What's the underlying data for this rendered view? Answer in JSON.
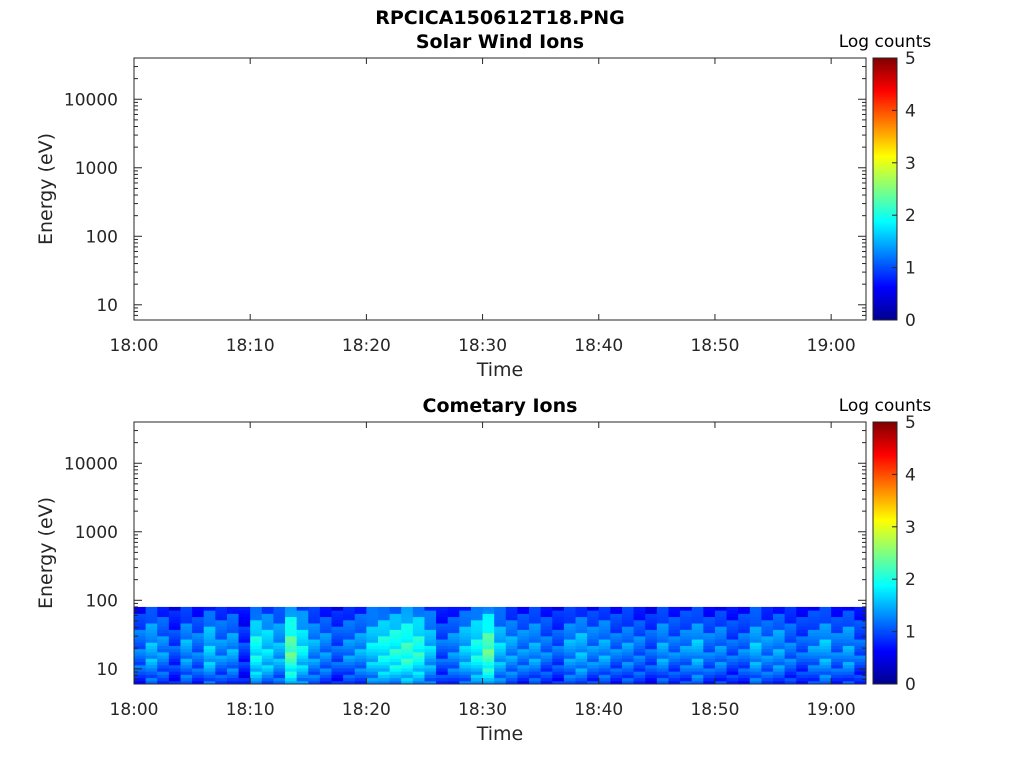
{
  "figure_title": "RPCICA150612T18.PNG",
  "colormap": [
    "#00008f",
    "#0000ff",
    "#0080ff",
    "#00ffff",
    "#80ff80",
    "#ffff00",
    "#ff8000",
    "#ff0000",
    "#800000"
  ],
  "chart_data": [
    {
      "type": "heatmap",
      "title": "Solar Wind Ions",
      "xlabel": "Time",
      "ylabel": "Energy (eV)",
      "x_ticks": [
        "18:00",
        "18:10",
        "18:20",
        "18:30",
        "18:40",
        "18:50",
        "19:00"
      ],
      "y_ticks": [
        "10",
        "100",
        "1000",
        "10000"
      ],
      "y_scale": "log",
      "xlim_minutes": [
        0,
        63
      ],
      "ylim_eV": [
        6,
        40000
      ],
      "colorbar": {
        "label": "Log counts",
        "ticks": [
          "0",
          "1",
          "2",
          "3",
          "4",
          "5"
        ],
        "range": [
          0,
          5
        ]
      },
      "grid": false,
      "intensity_profile": []
    },
    {
      "type": "heatmap",
      "title": "Cometary Ions",
      "xlabel": "Time",
      "ylabel": "Energy (eV)",
      "x_ticks": [
        "18:00",
        "18:10",
        "18:20",
        "18:30",
        "18:40",
        "18:50",
        "19:00"
      ],
      "y_ticks": [
        "10",
        "100",
        "1000",
        "10000"
      ],
      "y_scale": "log",
      "xlim_minutes": [
        0,
        63
      ],
      "ylim_eV": [
        6,
        40000
      ],
      "colorbar": {
        "label": "Log counts",
        "ticks": [
          "0",
          "1",
          "2",
          "3",
          "4",
          "5"
        ],
        "range": [
          0,
          5
        ]
      },
      "grid": false,
      "data_energy_range_eV": [
        6,
        80
      ],
      "intensity_profile": [
        {
          "t": 0,
          "v": 1.2
        },
        {
          "t": 1,
          "v": 1.5
        },
        {
          "t": 2,
          "v": 1.3
        },
        {
          "t": 3,
          "v": 1.0
        },
        {
          "t": 4,
          "v": 1.4
        },
        {
          "t": 5,
          "v": 1.2
        },
        {
          "t": 6,
          "v": 1.6
        },
        {
          "t": 7,
          "v": 1.3
        },
        {
          "t": 8,
          "v": 1.4
        },
        {
          "t": 9,
          "v": 0.9
        },
        {
          "t": 10,
          "v": 1.9
        },
        {
          "t": 11,
          "v": 1.7
        },
        {
          "t": 12,
          "v": 1.5
        },
        {
          "t": 13,
          "v": 2.3
        },
        {
          "t": 14,
          "v": 1.8
        },
        {
          "t": 15,
          "v": 1.4
        },
        {
          "t": 16,
          "v": 1.3
        },
        {
          "t": 17,
          "v": 1.1
        },
        {
          "t": 18,
          "v": 1.3
        },
        {
          "t": 19,
          "v": 1.4
        },
        {
          "t": 20,
          "v": 1.7
        },
        {
          "t": 21,
          "v": 1.9
        },
        {
          "t": 22,
          "v": 2.0
        },
        {
          "t": 23,
          "v": 2.1
        },
        {
          "t": 24,
          "v": 2.0
        },
        {
          "t": 25,
          "v": 1.6
        },
        {
          "t": 26,
          "v": 1.1
        },
        {
          "t": 27,
          "v": 1.3
        },
        {
          "t": 28,
          "v": 1.6
        },
        {
          "t": 29,
          "v": 1.9
        },
        {
          "t": 30,
          "v": 2.3
        },
        {
          "t": 31,
          "v": 1.6
        },
        {
          "t": 32,
          "v": 1.4
        },
        {
          "t": 33,
          "v": 1.3
        },
        {
          "t": 34,
          "v": 1.4
        },
        {
          "t": 35,
          "v": 1.2
        },
        {
          "t": 36,
          "v": 1.1
        },
        {
          "t": 37,
          "v": 1.4
        },
        {
          "t": 38,
          "v": 1.5
        },
        {
          "t": 39,
          "v": 1.3
        },
        {
          "t": 40,
          "v": 1.4
        },
        {
          "t": 41,
          "v": 1.2
        },
        {
          "t": 42,
          "v": 1.3
        },
        {
          "t": 43,
          "v": 1.2
        },
        {
          "t": 44,
          "v": 1.1
        },
        {
          "t": 45,
          "v": 1.4
        },
        {
          "t": 46,
          "v": 1.2
        },
        {
          "t": 47,
          "v": 1.3
        },
        {
          "t": 48,
          "v": 1.5
        },
        {
          "t": 49,
          "v": 1.2
        },
        {
          "t": 50,
          "v": 1.3
        },
        {
          "t": 51,
          "v": 1.1
        },
        {
          "t": 52,
          "v": 1.2
        },
        {
          "t": 53,
          "v": 1.5
        },
        {
          "t": 54,
          "v": 1.3
        },
        {
          "t": 55,
          "v": 1.4
        },
        {
          "t": 56,
          "v": 1.2
        },
        {
          "t": 57,
          "v": 1.1
        },
        {
          "t": 58,
          "v": 1.3
        },
        {
          "t": 59,
          "v": 1.5
        },
        {
          "t": 60,
          "v": 1.2
        },
        {
          "t": 61,
          "v": 1.4
        },
        {
          "t": 62,
          "v": 1.1
        }
      ]
    }
  ]
}
